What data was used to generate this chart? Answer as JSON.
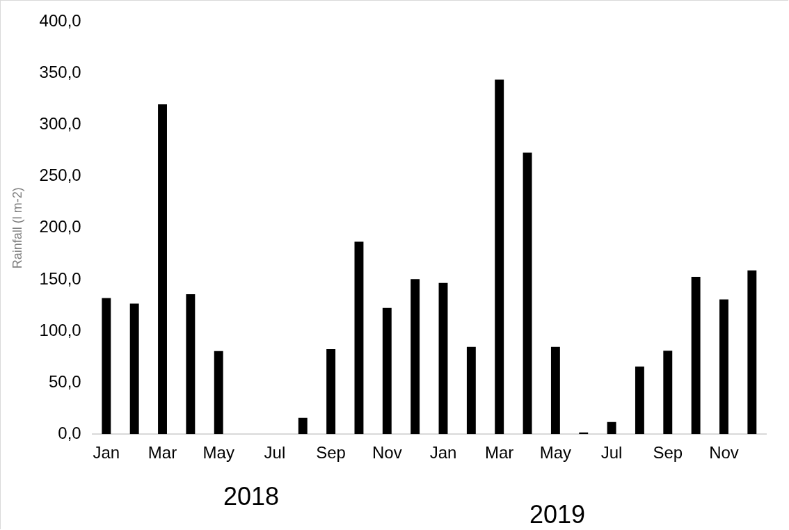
{
  "chart_data": {
    "type": "bar",
    "ylabel": "Rainfall (l m-2)",
    "categories": [
      "Jan",
      null,
      "Mar",
      null,
      "May",
      null,
      "Jul",
      null,
      "Sep",
      null,
      "Nov",
      null,
      "Jan",
      null,
      "Mar",
      null,
      "May",
      null,
      "Jul",
      null,
      "Sep",
      null,
      "Nov",
      null
    ],
    "values": [
      132,
      126.7,
      320,
      135.8,
      80.6,
      0,
      0,
      15.8,
      82.5,
      186.7,
      122.4,
      150.5,
      146.8,
      84.6,
      344,
      273,
      84.6,
      1.6,
      11.8,
      65.6,
      80.9,
      152.7,
      130.7,
      158.9
    ],
    "color": "#000000",
    "ylim": [
      0,
      400
    ],
    "yticks": [
      {
        "value": 0,
        "label": "0,0"
      },
      {
        "value": 50,
        "label": "50,0"
      },
      {
        "value": 100,
        "label": "100,0"
      },
      {
        "value": 150,
        "label": "150,0"
      },
      {
        "value": 200,
        "label": "200,0"
      },
      {
        "value": 250,
        "label": "250,0"
      },
      {
        "value": 300,
        "label": "300,0"
      },
      {
        "value": 350,
        "label": "350,0"
      },
      {
        "value": 400,
        "label": "400,0"
      }
    ],
    "grid": false,
    "legend": false,
    "annotations": [
      "2018",
      "2019"
    ]
  }
}
